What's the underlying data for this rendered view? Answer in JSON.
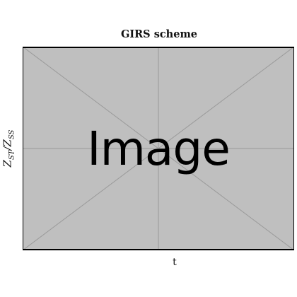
{
  "title": "GIRS scheme",
  "xlabel": "t",
  "ylabel": "Z_ST/Z_SS",
  "placeholder_text": "Image",
  "colors": {
    "placeholder_fill": "#bfbfbf",
    "guide_lines": "#9a9a9a",
    "frame": "#000000"
  }
}
